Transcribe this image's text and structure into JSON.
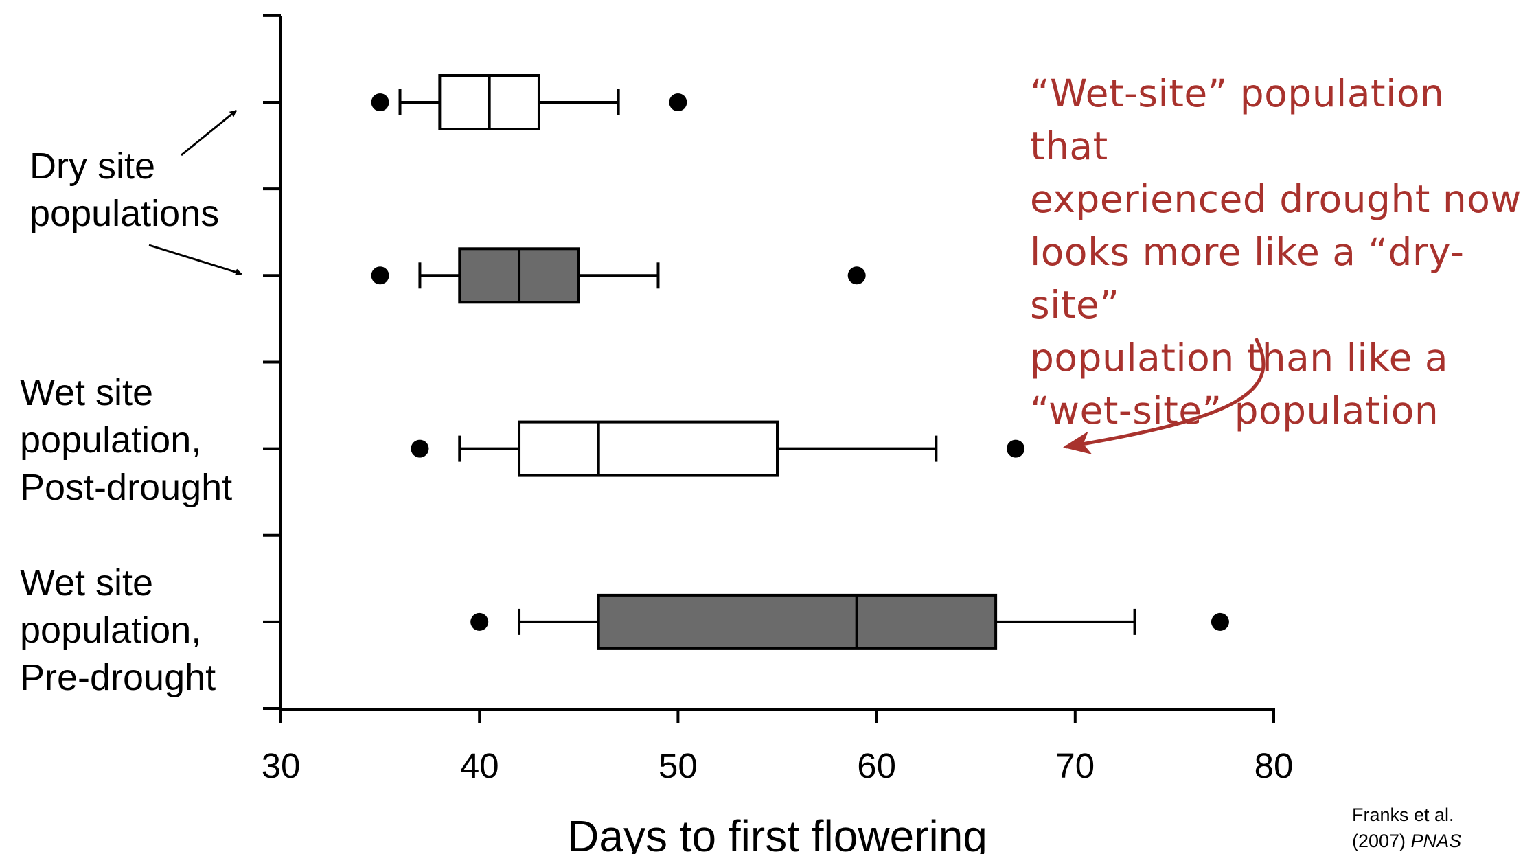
{
  "chart_data": {
    "type": "boxplot",
    "categories": [
      null,
      null,
      "Wet site\npopulation,\nPost-drought",
      "Wet site\npopulation,\nPre-drought"
    ],
    "boxes": [
      {
        "whisker_low": 36,
        "q1": 38,
        "median": 40.5,
        "q3": 43,
        "whisker_high": 47,
        "outliers": [
          35,
          50
        ]
      },
      {
        "whisker_low": 37,
        "q1": 39,
        "median": 42,
        "q3": 45,
        "whisker_high": 49,
        "outliers": [
          35,
          59
        ]
      },
      {
        "whisker_low": 39,
        "q1": 42,
        "median": 46,
        "q3": 55,
        "whisker_high": 63,
        "outliers": [
          37,
          67
        ]
      },
      {
        "whisker_low": 42,
        "q1": 46,
        "median": 59,
        "q3": 66,
        "whisker_high": 73,
        "outliers": [
          40,
          77.3
        ]
      }
    ],
    "colors": [
      "#ffffff",
      "#6b6b6b",
      "#ffffff",
      "#6b6b6b"
    ],
    "xlim": [
      30,
      80
    ],
    "xticks": [
      30,
      40,
      50,
      60,
      70,
      80
    ],
    "xlabel": "Days to first flowering",
    "annotations": {
      "dry_site": "Dry site\npopulations",
      "note": "“Wet-site” population that\nexperienced drought now\nlooks more like a “dry-site”\npopulation than like a\n“wet-site” population"
    },
    "source": {
      "text": "Franks et al.\n(2007)",
      "journal": "PNAS"
    }
  }
}
